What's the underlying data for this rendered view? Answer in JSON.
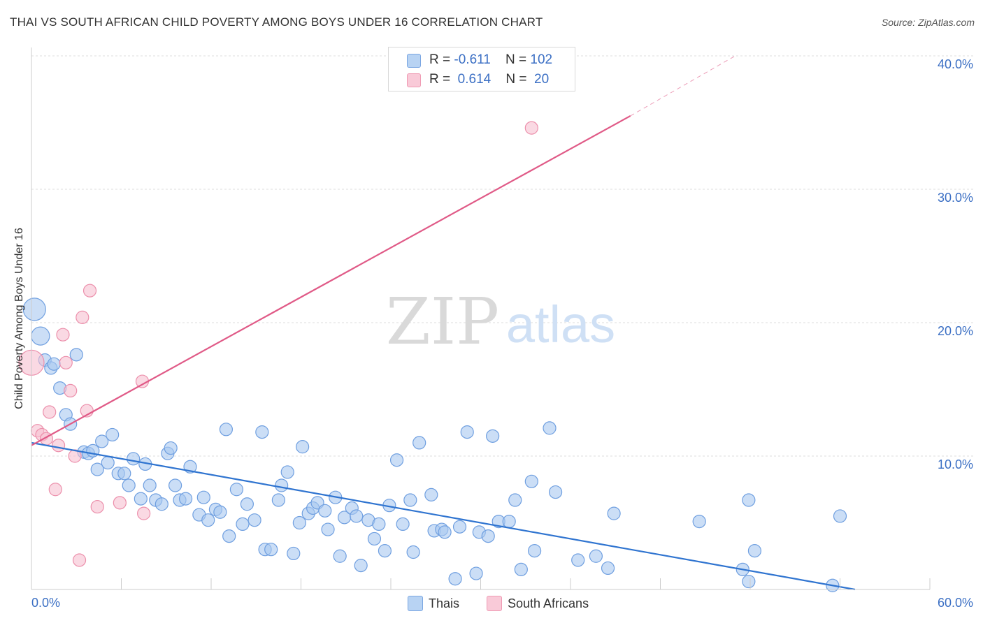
{
  "title": "THAI VS SOUTH AFRICAN CHILD POVERTY AMONG BOYS UNDER 16 CORRELATION CHART",
  "source": "Source: ZipAtlas.com",
  "watermark": {
    "zip": "ZIP",
    "atlas": "atlas"
  },
  "legend": {
    "thais": {
      "r_label": "R =",
      "r_value": "-0.611",
      "n_label": "N =",
      "n_value": "102"
    },
    "south_africans": {
      "r_label": "R =",
      "r_value": "0.614",
      "n_label": "N =",
      "n_value": "20"
    }
  },
  "colors": {
    "thais_fill": "#a9c8f0",
    "thais_stroke": "#6f9fe0",
    "thais_line": "#2f74d0",
    "sa_fill": "#f7c0d0",
    "sa_stroke": "#ec8fab",
    "sa_line": "#e05a87"
  },
  "chart_data": {
    "type": "scatter",
    "title": "THAI VS SOUTH AFRICAN CHILD POVERTY AMONG BOYS UNDER 16 CORRELATION CHART",
    "xlabel": "",
    "ylabel": "Child Poverty Among Boys Under 16",
    "xlim": [
      0,
      60
    ],
    "ylim": [
      0,
      40
    ],
    "x_tick_labels": [
      "0.0%",
      "60.0%"
    ],
    "y_ticks": [
      10,
      20,
      30,
      40
    ],
    "y_tick_labels": [
      "10.0%",
      "20.0%",
      "30.0%",
      "40.0%"
    ],
    "legend_position": "top-center",
    "grid": true,
    "series": [
      {
        "name": "Thais",
        "trend": {
          "x0": 0,
          "y0": 11.0,
          "x1": 55,
          "y1": 0
        },
        "points": [
          [
            0.2,
            21.0
          ],
          [
            0.6,
            19.0
          ],
          [
            0.9,
            17.2
          ],
          [
            1.3,
            16.6
          ],
          [
            1.5,
            16.9
          ],
          [
            3.0,
            17.6
          ],
          [
            1.9,
            15.1
          ],
          [
            2.3,
            13.1
          ],
          [
            2.6,
            12.4
          ],
          [
            3.5,
            10.3
          ],
          [
            3.8,
            10.2
          ],
          [
            4.1,
            10.4
          ],
          [
            4.7,
            11.1
          ],
          [
            5.4,
            11.6
          ],
          [
            4.4,
            9.0
          ],
          [
            5.1,
            9.5
          ],
          [
            5.8,
            8.7
          ],
          [
            6.2,
            8.7
          ],
          [
            6.5,
            7.8
          ],
          [
            6.8,
            9.8
          ],
          [
            7.3,
            6.8
          ],
          [
            7.6,
            9.4
          ],
          [
            7.9,
            7.8
          ],
          [
            8.3,
            6.7
          ],
          [
            8.7,
            6.4
          ],
          [
            9.1,
            10.2
          ],
          [
            9.3,
            10.6
          ],
          [
            9.6,
            7.8
          ],
          [
            9.9,
            6.7
          ],
          [
            10.3,
            6.8
          ],
          [
            10.6,
            9.2
          ],
          [
            11.2,
            5.6
          ],
          [
            11.5,
            6.9
          ],
          [
            11.8,
            5.2
          ],
          [
            12.3,
            6.0
          ],
          [
            12.6,
            5.8
          ],
          [
            13.0,
            12.0
          ],
          [
            13.2,
            4.0
          ],
          [
            13.7,
            7.5
          ],
          [
            14.1,
            4.9
          ],
          [
            14.4,
            6.4
          ],
          [
            14.9,
            5.2
          ],
          [
            15.4,
            11.8
          ],
          [
            15.6,
            3.0
          ],
          [
            16.0,
            3.0
          ],
          [
            16.5,
            6.7
          ],
          [
            16.7,
            7.8
          ],
          [
            17.1,
            8.8
          ],
          [
            17.5,
            2.7
          ],
          [
            17.9,
            5.0
          ],
          [
            18.1,
            10.7
          ],
          [
            18.5,
            5.7
          ],
          [
            18.8,
            6.1
          ],
          [
            19.1,
            6.5
          ],
          [
            19.6,
            5.9
          ],
          [
            19.8,
            4.5
          ],
          [
            20.3,
            6.9
          ],
          [
            20.6,
            2.5
          ],
          [
            20.9,
            5.4
          ],
          [
            21.4,
            6.1
          ],
          [
            21.7,
            5.5
          ],
          [
            22.0,
            1.8
          ],
          [
            22.5,
            5.2
          ],
          [
            22.9,
            3.8
          ],
          [
            23.2,
            4.9
          ],
          [
            23.6,
            2.9
          ],
          [
            23.9,
            6.3
          ],
          [
            24.4,
            9.7
          ],
          [
            24.8,
            4.9
          ],
          [
            25.3,
            6.7
          ],
          [
            25.5,
            2.8
          ],
          [
            25.9,
            11.0
          ],
          [
            26.7,
            7.1
          ],
          [
            26.9,
            4.4
          ],
          [
            27.4,
            4.5
          ],
          [
            27.6,
            4.3
          ],
          [
            28.3,
            0.8
          ],
          [
            28.6,
            4.7
          ],
          [
            29.1,
            11.8
          ],
          [
            29.7,
            1.2
          ],
          [
            29.9,
            4.3
          ],
          [
            30.5,
            4.0
          ],
          [
            30.8,
            11.5
          ],
          [
            31.2,
            5.1
          ],
          [
            31.9,
            5.1
          ],
          [
            32.3,
            6.7
          ],
          [
            32.7,
            1.5
          ],
          [
            33.4,
            8.1
          ],
          [
            33.6,
            2.9
          ],
          [
            34.6,
            12.1
          ],
          [
            35.0,
            7.3
          ],
          [
            36.5,
            2.2
          ],
          [
            37.7,
            2.5
          ],
          [
            38.5,
            1.6
          ],
          [
            38.9,
            5.7
          ],
          [
            44.6,
            5.1
          ],
          [
            47.5,
            1.5
          ],
          [
            47.9,
            0.6
          ],
          [
            47.9,
            6.7
          ],
          [
            48.3,
            2.9
          ],
          [
            54.0,
            5.5
          ],
          [
            53.5,
            0.3
          ]
        ]
      },
      {
        "name": "South Africans",
        "trend": {
          "x0": 0,
          "y0": 10.8,
          "x1": 40,
          "y1": 35.5,
          "dash_to_x": 47,
          "dash_to_y": 40.0
        },
        "points": [
          [
            0.0,
            17.0
          ],
          [
            0.4,
            11.9
          ],
          [
            0.7,
            11.6
          ],
          [
            1.0,
            11.3
          ],
          [
            1.8,
            10.8
          ],
          [
            1.2,
            13.3
          ],
          [
            2.1,
            19.1
          ],
          [
            2.3,
            17.0
          ],
          [
            2.6,
            14.9
          ],
          [
            2.9,
            10.0
          ],
          [
            1.6,
            7.5
          ],
          [
            3.4,
            20.4
          ],
          [
            3.7,
            13.4
          ],
          [
            3.9,
            22.4
          ],
          [
            4.4,
            6.2
          ],
          [
            5.9,
            6.5
          ],
          [
            7.4,
            15.6
          ],
          [
            7.5,
            5.7
          ],
          [
            3.2,
            2.2
          ],
          [
            33.4,
            34.6
          ]
        ]
      }
    ]
  }
}
